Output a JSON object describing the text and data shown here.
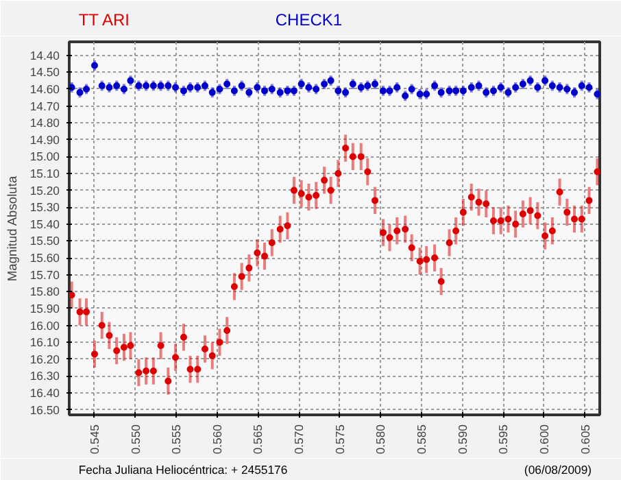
{
  "chart_data": {
    "type": "scatter",
    "xlabel": "Fecha Juliana Heliocéntrica:  + 2455176",
    "ylabel": "Magnitud Absoluta",
    "annotations": [
      "(06/08/2009)"
    ],
    "x": [
      0.5422,
      0.5432,
      0.544,
      0.545,
      0.5459,
      0.5468,
      0.5477,
      0.5486,
      0.5494,
      0.5504,
      0.5513,
      0.5522,
      0.5531,
      0.554,
      0.5549,
      0.5559,
      0.5567,
      0.5576,
      0.5585,
      0.5594,
      0.5603,
      0.5612,
      0.5621,
      0.563,
      0.5639,
      0.5649,
      0.5658,
      0.5667,
      0.5677,
      0.5686,
      0.5694,
      0.5703,
      0.5712,
      0.5721,
      0.5731,
      0.5739,
      0.5748,
      0.5757,
      0.5766,
      0.5776,
      0.5784,
      0.5793,
      0.5803,
      0.5811,
      0.582,
      0.583,
      0.5838,
      0.5848,
      0.5856,
      0.5866,
      0.5874,
      0.5884,
      0.5892,
      0.5901,
      0.5911,
      0.592,
      0.5929,
      0.5938,
      0.5947,
      0.5956,
      0.5965,
      0.5974,
      0.5983,
      0.5992,
      0.6001,
      0.601,
      0.6019,
      0.6028,
      0.6037,
      0.6046,
      0.6055,
      0.6065
    ],
    "series": [
      {
        "name": "TT ARI",
        "color": "#dd0000",
        "values": [
          15.82,
          15.92,
          15.92,
          16.17,
          16.0,
          16.06,
          16.15,
          16.13,
          16.12,
          16.28,
          16.27,
          16.27,
          16.12,
          16.33,
          16.19,
          16.07,
          16.26,
          16.26,
          16.14,
          16.18,
          16.1,
          16.03,
          15.77,
          15.71,
          15.66,
          15.57,
          15.59,
          15.51,
          15.43,
          15.41,
          15.2,
          15.22,
          15.24,
          15.23,
          15.14,
          15.2,
          15.1,
          14.95,
          15.0,
          15.0,
          15.09,
          15.26,
          15.45,
          15.48,
          15.44,
          15.43,
          15.54,
          15.62,
          15.61,
          15.6,
          15.74,
          15.51,
          15.44,
          15.33,
          15.24,
          15.27,
          15.28,
          15.38,
          15.38,
          15.37,
          15.4,
          15.34,
          15.32,
          15.35,
          15.47,
          15.44,
          15.21,
          15.33,
          15.37,
          15.37,
          15.26,
          15.09
        ],
        "errors": [
          0.08,
          0.08,
          0.08,
          0.08,
          0.08,
          0.08,
          0.08,
          0.08,
          0.08,
          0.08,
          0.08,
          0.08,
          0.08,
          0.08,
          0.08,
          0.08,
          0.08,
          0.08,
          0.08,
          0.08,
          0.08,
          0.08,
          0.08,
          0.08,
          0.08,
          0.08,
          0.08,
          0.08,
          0.08,
          0.08,
          0.08,
          0.08,
          0.08,
          0.08,
          0.08,
          0.08,
          0.08,
          0.08,
          0.08,
          0.08,
          0.08,
          0.08,
          0.08,
          0.08,
          0.08,
          0.08,
          0.08,
          0.08,
          0.08,
          0.08,
          0.08,
          0.08,
          0.08,
          0.08,
          0.08,
          0.08,
          0.08,
          0.08,
          0.08,
          0.08,
          0.08,
          0.08,
          0.08,
          0.08,
          0.08,
          0.08,
          0.08,
          0.08,
          0.08,
          0.08,
          0.08,
          0.08
        ]
      },
      {
        "name": "CHECK1",
        "color": "#0000cc",
        "values": [
          14.59,
          14.62,
          14.6,
          14.46,
          14.58,
          14.59,
          14.58,
          14.6,
          14.55,
          14.58,
          14.58,
          14.58,
          14.58,
          14.58,
          14.59,
          14.61,
          14.59,
          14.59,
          14.58,
          14.62,
          14.6,
          14.57,
          14.61,
          14.58,
          14.62,
          14.59,
          14.61,
          14.6,
          14.62,
          14.61,
          14.61,
          14.57,
          14.59,
          14.6,
          14.57,
          14.55,
          14.61,
          14.62,
          14.57,
          14.59,
          14.58,
          14.57,
          14.61,
          14.61,
          14.59,
          14.64,
          14.6,
          14.63,
          14.63,
          14.58,
          14.62,
          14.61,
          14.61,
          14.61,
          14.59,
          14.58,
          14.62,
          14.61,
          14.59,
          14.62,
          14.59,
          14.57,
          14.55,
          14.59,
          14.55,
          14.58,
          14.59,
          14.6,
          14.62,
          14.58,
          14.59,
          14.63
        ],
        "errors": [
          0.03,
          0.03,
          0.03,
          0.03,
          0.03,
          0.03,
          0.03,
          0.03,
          0.03,
          0.03,
          0.03,
          0.03,
          0.03,
          0.03,
          0.03,
          0.03,
          0.03,
          0.03,
          0.03,
          0.03,
          0.03,
          0.03,
          0.03,
          0.03,
          0.03,
          0.03,
          0.03,
          0.03,
          0.03,
          0.03,
          0.03,
          0.03,
          0.03,
          0.03,
          0.03,
          0.03,
          0.03,
          0.03,
          0.03,
          0.03,
          0.03,
          0.03,
          0.03,
          0.03,
          0.03,
          0.03,
          0.03,
          0.03,
          0.03,
          0.03,
          0.03,
          0.03,
          0.03,
          0.03,
          0.03,
          0.03,
          0.03,
          0.03,
          0.03,
          0.03,
          0.03,
          0.03,
          0.03,
          0.03,
          0.03,
          0.03,
          0.03,
          0.03,
          0.03,
          0.03,
          0.03,
          0.03
        ]
      }
    ],
    "xlim": [
      0.5419,
      0.6068
    ],
    "ylim": [
      16.53,
      14.32
    ],
    "xticks": [
      0.545,
      {
        "value": 0.55,
        "label": "0.550"
      },
      0.555,
      {
        "value": 0.56,
        "label": "0.560"
      },
      0.565,
      {
        "value": 0.57,
        "label": "0.570"
      },
      0.575,
      {
        "value": 0.58,
        "label": "0.580"
      },
      0.585,
      {
        "value": 0.59,
        "label": "0.590"
      },
      0.595,
      {
        "value": 0.6,
        "label": "0.600"
      },
      0.605
    ],
    "yticks": [
      {
        "value": 14.4,
        "label": "14.40"
      },
      {
        "value": 14.5,
        "label": "14.50"
      },
      {
        "value": 14.6,
        "label": "14.60"
      },
      {
        "value": 14.7,
        "label": "14.70"
      },
      {
        "value": 14.8,
        "label": "14.80"
      },
      {
        "value": 14.9,
        "label": "14.90"
      },
      {
        "value": 15.0,
        "label": "15.00"
      },
      {
        "value": 15.1,
        "label": "15.10"
      },
      {
        "value": 15.2,
        "label": "15.20"
      },
      {
        "value": 15.3,
        "label": "15.30"
      },
      {
        "value": 15.4,
        "label": "15.40"
      },
      {
        "value": 15.5,
        "label": "15.50"
      },
      {
        "value": 15.6,
        "label": "15.60"
      },
      {
        "value": 15.7,
        "label": "15.70"
      },
      {
        "value": 15.8,
        "label": "15.80"
      },
      {
        "value": 15.9,
        "label": "15.90"
      },
      {
        "value": 16.0,
        "label": "16.00"
      },
      {
        "value": 16.1,
        "label": "16.10"
      },
      {
        "value": 16.2,
        "label": "16.20"
      },
      {
        "value": 16.3,
        "label": "16.30"
      },
      {
        "value": 16.4,
        "label": "16.40"
      },
      {
        "value": 16.5,
        "label": "16.50"
      }
    ],
    "grid": true,
    "marker": "circle"
  }
}
